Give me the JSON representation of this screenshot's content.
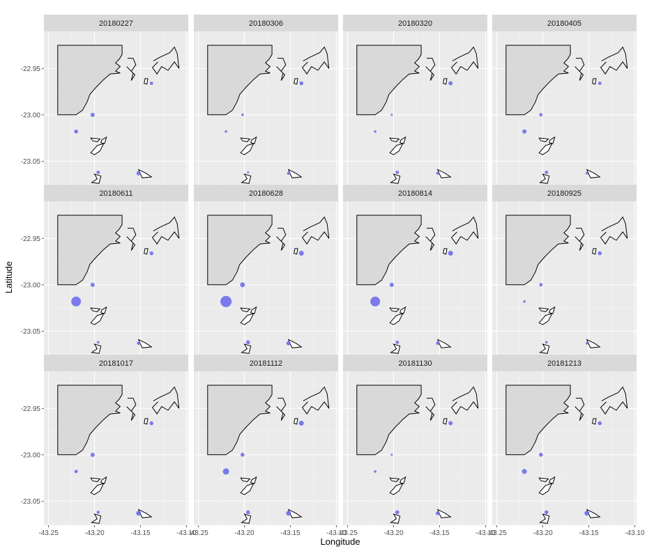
{
  "chart_data": {
    "type": "scatter",
    "subtype": "faceted bubble map",
    "xlabel": "Longitude",
    "ylabel": "Latitude",
    "xlim": [
      -43.255,
      -43.098
    ],
    "ylim": [
      -23.076,
      -22.91
    ],
    "x_ticks": [
      -43.25,
      -43.2,
      -43.15,
      -43.1
    ],
    "x_tick_labels": [
      "-43.25",
      "-43.20",
      "-43.15",
      "-43.10"
    ],
    "y_ticks": [
      -22.95,
      -23.0,
      -23.05
    ],
    "y_tick_labels": [
      "-22.95",
      "-23.00",
      "-23.05"
    ],
    "grid": true,
    "facet_layout": {
      "columns": 4,
      "rows": 3
    },
    "point_color": "#6666ee",
    "coastline_fill": "#d9d9d9",
    "panel_background": "#ebebeb",
    "strip_background": "#d9d9d9",
    "stations": [
      {
        "x": -43.138,
        "y": -22.966
      },
      {
        "x": -43.202,
        "y": -23.0
      },
      {
        "x": -43.22,
        "y": -23.018
      },
      {
        "x": -43.196,
        "y": -23.062
      },
      {
        "x": -43.152,
        "y": -23.063
      }
    ],
    "facets": [
      {
        "label": "20180227",
        "sizes": [
          2.4,
          3.0,
          2.8,
          2.4,
          3.0
        ]
      },
      {
        "label": "20180306",
        "sizes": [
          2.8,
          1.8,
          1.8,
          1.5,
          2.2
        ]
      },
      {
        "label": "20180320",
        "sizes": [
          3.0,
          1.5,
          1.8,
          2.4,
          2.2
        ]
      },
      {
        "label": "20180405",
        "sizes": [
          2.4,
          2.4,
          3.0,
          2.4,
          1.8
        ]
      },
      {
        "label": "20180611",
        "sizes": [
          2.8,
          3.0,
          7.0,
          1.8,
          2.4
        ]
      },
      {
        "label": "20180628",
        "sizes": [
          3.5,
          3.5,
          8.0,
          2.8,
          3.0
        ]
      },
      {
        "label": "20180814",
        "sizes": [
          3.5,
          3.0,
          7.0,
          2.4,
          2.4
        ]
      },
      {
        "label": "20180925",
        "sizes": [
          2.8,
          2.4,
          1.8,
          1.8,
          1.8
        ]
      },
      {
        "label": "20181017",
        "sizes": [
          2.8,
          3.0,
          2.4,
          2.2,
          3.5
        ]
      },
      {
        "label": "20181112",
        "sizes": [
          3.5,
          2.8,
          4.5,
          2.8,
          3.5
        ]
      },
      {
        "label": "20181130",
        "sizes": [
          3.0,
          1.5,
          1.8,
          2.8,
          2.8
        ]
      },
      {
        "label": "20181213",
        "sizes": [
          2.8,
          2.8,
          3.5,
          2.8,
          3.5
        ]
      }
    ]
  }
}
